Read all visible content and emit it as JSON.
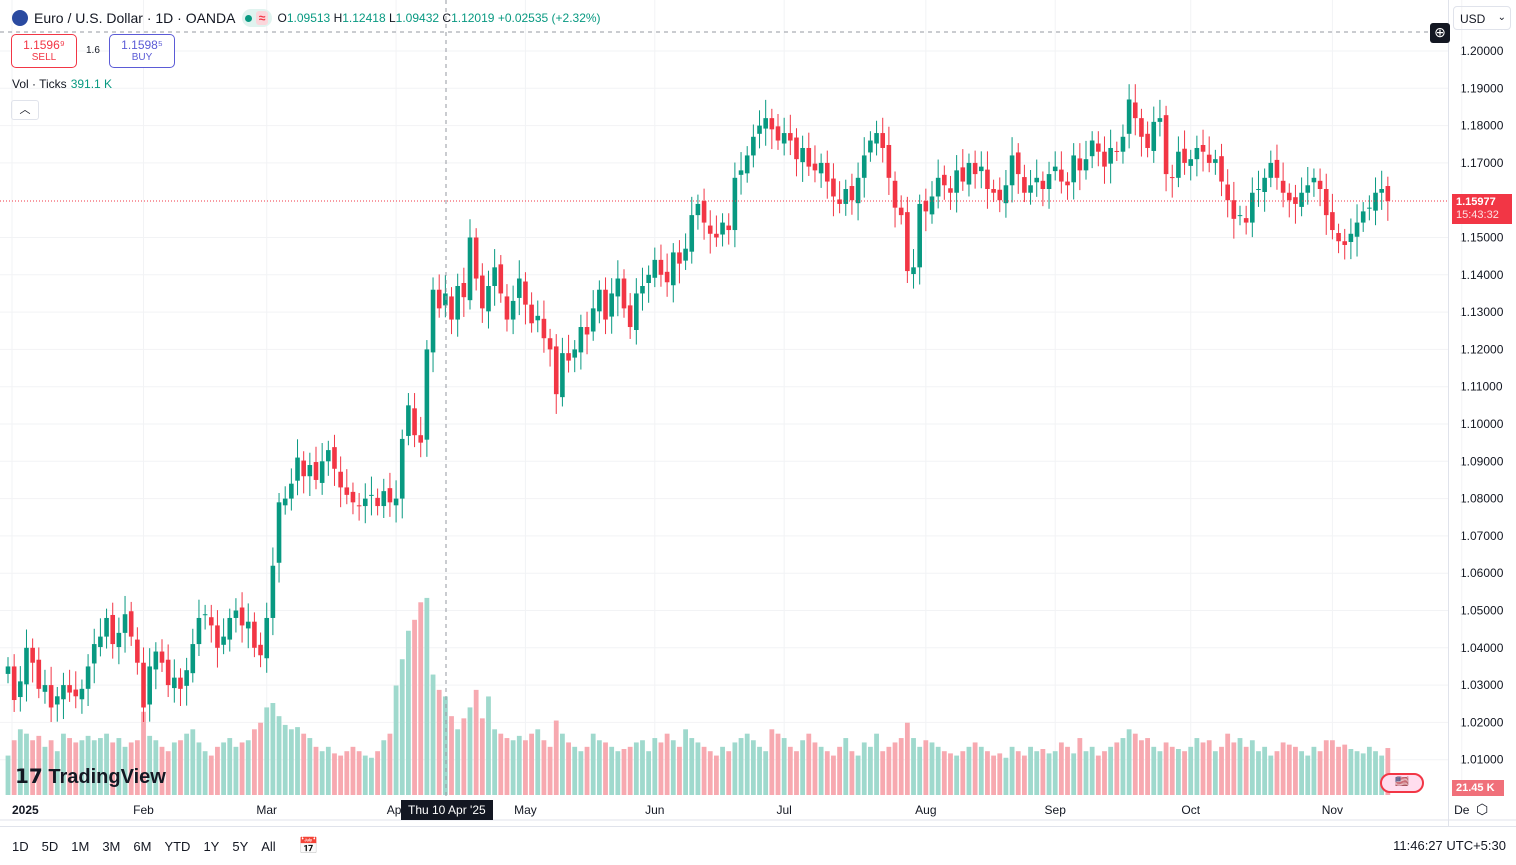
{
  "header": {
    "symbol": "Euro / U.S. Dollar · 1D · OANDA",
    "o_label": "O",
    "o": "1.09513",
    "h_label": "H",
    "h": "1.12418",
    "l_label": "L",
    "l": "1.09432",
    "c_label": "C",
    "c": "1.12019",
    "change": "+0.02535 (+2.32%)",
    "market_status_icon": "≈"
  },
  "trade": {
    "sell_price": "1.1596⁹",
    "sell_label": "SELL",
    "spread": "1.6",
    "buy_price": "1.1598⁵",
    "buy_label": "BUY"
  },
  "volume_legend": {
    "label": "Vol · Ticks",
    "value": "391.1 K"
  },
  "currency": "USD",
  "price_tag": {
    "price": "1.15977",
    "countdown": "15:43:32"
  },
  "volume_tag": "21.45 K",
  "crosshair_label": "Thu 10 Apr '25",
  "colors": {
    "up": "#089981",
    "down": "#f23645"
  },
  "toolbar": {
    "ranges": [
      "1D",
      "5D",
      "1M",
      "3M",
      "6M",
      "YTD",
      "1Y",
      "5Y",
      "All"
    ],
    "clock": "11:46:27 UTC+5:30"
  },
  "watermark": "TradingView",
  "chart_data": {
    "type": "candlestick",
    "title": "Euro / U.S. Dollar · 1D · OANDA",
    "y_ticks": [
      "1.20000",
      "1.19000",
      "1.18000",
      "1.17000",
      "1.15000",
      "1.14000",
      "1.13000",
      "1.12000",
      "1.11000",
      "1.10000",
      "1.09000",
      "1.08000",
      "1.07000",
      "1.06000",
      "1.05000",
      "1.04000",
      "1.03000",
      "1.02000",
      "1.01000"
    ],
    "ylim": [
      1.0,
      1.2035
    ],
    "x_ticks": [
      "2025",
      "Feb",
      "Mar",
      "Apr",
      "May",
      "Jun",
      "Jul",
      "Aug",
      "Sep",
      "Oct",
      "Nov",
      "De"
    ],
    "month_bar_counts": [
      22,
      20,
      21,
      21,
      21,
      21,
      23,
      21,
      22,
      23,
      10
    ],
    "closes": [
      1.035,
      1.026,
      1.031,
      1.04,
      1.036,
      1.029,
      1.03,
      1.024,
      1.027,
      1.03,
      1.028,
      1.027,
      1.029,
      1.035,
      1.041,
      1.043,
      1.048,
      1.041,
      1.044,
      1.049,
      1.043,
      1.036,
      1.024,
      1.035,
      1.039,
      1.036,
      1.03,
      1.032,
      1.029,
      1.034,
      1.041,
      1.048,
      1.049,
      1.046,
      1.04,
      1.043,
      1.048,
      1.05,
      1.046,
      1.047,
      1.04,
      1.038,
      1.048,
      1.062,
      1.079,
      1.08,
      1.084,
      1.091,
      1.086,
      1.089,
      1.085,
      1.09,
      1.093,
      1.088,
      1.083,
      1.081,
      1.079,
      1.078,
      1.08,
      1.081,
      1.078,
      1.082,
      1.079,
      1.08,
      1.096,
      1.105,
      1.097,
      1.095,
      1.12,
      1.136,
      1.131,
      1.135,
      1.128,
      1.137,
      1.134,
      1.15,
      1.139,
      1.131,
      1.137,
      1.142,
      1.135,
      1.128,
      1.133,
      1.139,
      1.132,
      1.127,
      1.129,
      1.123,
      1.12,
      1.108,
      1.119,
      1.117,
      1.12,
      1.126,
      1.124,
      1.131,
      1.136,
      1.128,
      1.135,
      1.139,
      1.131,
      1.126,
      1.135,
      1.137,
      1.14,
      1.144,
      1.14,
      1.138,
      1.146,
      1.143,
      1.147,
      1.156,
      1.159,
      1.154,
      1.151,
      1.15,
      1.154,
      1.152,
      1.166,
      1.168,
      1.172,
      1.177,
      1.18,
      1.182,
      1.179,
      1.176,
      1.178,
      1.176,
      1.171,
      1.174,
      1.169,
      1.168,
      1.17,
      1.165,
      1.161,
      1.159,
      1.163,
      1.16,
      1.166,
      1.172,
      1.176,
      1.178,
      1.174,
      1.166,
      1.158,
      1.156,
      1.141,
      1.142,
      1.159,
      1.157,
      1.161,
      1.166,
      1.164,
      1.162,
      1.168,
      1.165,
      1.17,
      1.167,
      1.169,
      1.163,
      1.162,
      1.16,
      1.164,
      1.172,
      1.167,
      1.162,
      1.164,
      1.166,
      1.163,
      1.167,
      1.169,
      1.165,
      1.164,
      1.172,
      1.168,
      1.171,
      1.176,
      1.173,
      1.169,
      1.174,
      1.173,
      1.177,
      1.187,
      1.182,
      1.177,
      1.174,
      1.181,
      1.182,
      1.167,
      1.166,
      1.173,
      1.17,
      1.171,
      1.174,
      1.173,
      1.17,
      1.171,
      1.165,
      1.16,
      1.155,
      1.156,
      1.154,
      1.162,
      1.163,
      1.166,
      1.17,
      1.166,
      1.162,
      1.16,
      1.159,
      1.162,
      1.164,
      1.166,
      1.163,
      1.156,
      1.152,
      1.149,
      1.148,
      1.151,
      1.154,
      1.157,
      1.158,
      1.162,
      1.163,
      1.15977
    ],
    "volume_k": [
      18,
      25,
      30,
      28,
      25,
      27,
      22,
      25,
      20,
      28,
      26,
      24,
      25,
      27,
      25,
      26,
      28,
      24,
      26,
      22,
      24,
      25,
      38,
      27,
      25,
      22,
      20,
      24,
      25,
      28,
      30,
      24,
      20,
      18,
      22,
      24,
      26,
      22,
      24,
      25,
      30,
      33,
      40,
      42,
      36,
      32,
      30,
      31,
      28,
      26,
      22,
      20,
      22,
      19,
      18,
      20,
      22,
      20,
      18,
      17,
      20,
      25,
      28,
      50,
      62,
      75,
      80,
      88,
      90,
      55,
      48,
      45,
      36,
      30,
      35,
      40,
      48,
      35,
      45,
      30,
      28,
      26,
      25,
      27,
      25,
      28,
      30,
      25,
      22,
      34,
      28,
      24,
      22,
      20,
      22,
      28,
      25,
      24,
      22,
      20,
      21,
      22,
      24,
      25,
      20,
      26,
      24,
      28,
      25,
      22,
      30,
      26,
      24,
      22,
      20,
      18,
      22,
      20,
      24,
      26,
      28,
      25,
      22,
      20,
      30,
      28,
      26,
      22,
      20,
      25,
      28,
      24,
      22,
      20,
      18,
      22,
      26,
      20,
      18,
      24,
      22,
      28,
      20,
      22,
      24,
      26,
      33,
      26,
      22,
      25,
      24,
      22,
      20,
      19,
      18,
      20,
      22,
      24,
      22,
      20,
      18,
      19,
      17,
      22,
      20,
      18,
      22,
      20,
      21,
      19,
      20,
      24,
      22,
      19,
      26,
      20,
      22,
      18,
      20,
      22,
      24,
      26,
      30,
      28,
      25,
      26,
      22,
      20,
      24,
      22,
      21,
      20,
      22,
      26,
      24,
      25,
      20,
      22,
      28,
      24,
      26,
      22,
      25,
      20,
      22,
      18,
      20,
      24,
      23,
      22,
      20,
      18,
      22,
      20,
      25,
      25,
      22,
      23,
      21,
      20,
      19,
      22,
      20,
      18,
      21.45
    ]
  }
}
